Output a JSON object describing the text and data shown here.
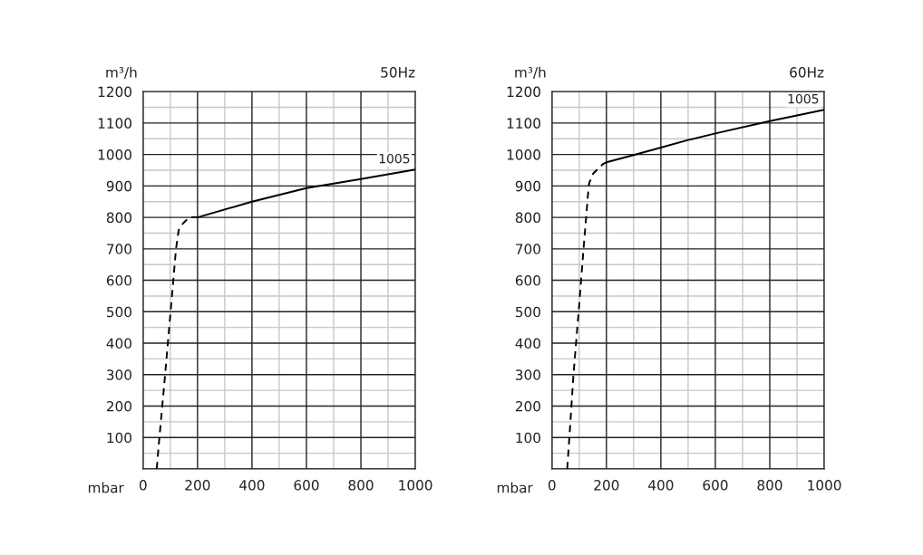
{
  "chart_data": [
    {
      "type": "line",
      "title": "50Hz",
      "ylabel": "m³/h",
      "xlabel": "mbar",
      "xlim": [
        0,
        1000
      ],
      "ylim": [
        0,
        1200
      ],
      "xticks": [
        0,
        200,
        400,
        600,
        800,
        1000
      ],
      "yticks": [
        {
          "value": 0,
          "label": null
        },
        100,
        200,
        300,
        400,
        500,
        600,
        700,
        800,
        900,
        1000,
        1100,
        1200
      ],
      "grid": true,
      "marker": "none",
      "series": [
        {
          "color": "#000000",
          "line_style": "dashed",
          "x": [
            50,
            60,
            81,
            101,
            121,
            131,
            146,
            169,
            200
          ],
          "values": [
            0,
            100,
            300,
            500,
            700,
            760,
            780,
            800,
            800
          ]
        },
        {
          "color": "#000000",
          "line_style": "solid",
          "x": [
            200,
            400,
            600,
            800,
            1000
          ],
          "values": [
            800,
            850,
            893,
            922,
            952
          ]
        }
      ],
      "annotations": [
        {
          "text": "1005",
          "x": 1000,
          "y": 952
        }
      ]
    },
    {
      "type": "line",
      "title": "60Hz",
      "ylabel": "m³/h",
      "xlabel": "mbar",
      "xlim": [
        0,
        1000
      ],
      "ylim": [
        0,
        1200
      ],
      "xticks": [
        0,
        200,
        400,
        600,
        800,
        1000
      ],
      "yticks": [
        {
          "value": 0,
          "label": null
        },
        100,
        200,
        300,
        400,
        500,
        600,
        700,
        800,
        900,
        1000,
        1100,
        1200
      ],
      "grid": true,
      "marker": "none",
      "series": [
        {
          "color": "#000000",
          "line_style": "dashed",
          "x": [
            56,
            64,
            79,
            98,
            116,
            135,
            138,
            152,
            188
          ],
          "values": [
            0,
            100,
            300,
            500,
            700,
            900,
            912,
            940,
            970
          ]
        },
        {
          "color": "#000000",
          "line_style": "solid",
          "x": [
            188,
            200,
            300,
            400,
            500,
            600,
            800,
            1000
          ],
          "values": [
            970,
            975,
            998,
            1022,
            1046,
            1067,
            1106,
            1142
          ]
        }
      ],
      "annotations": [
        {
          "text": "1005",
          "x": 1000,
          "y": 1142
        }
      ]
    }
  ]
}
